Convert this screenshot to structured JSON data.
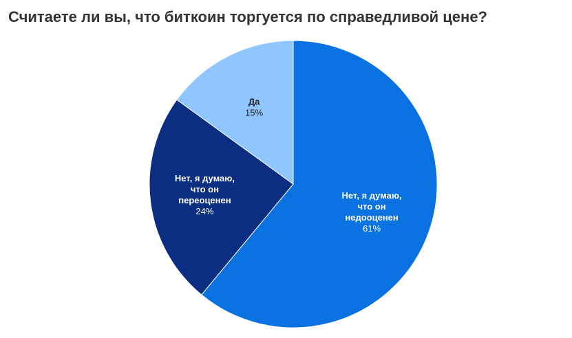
{
  "chart_data": {
    "type": "pie",
    "title": "Считаете ли вы, что биткоин торгуется по справедливой цене?",
    "slices": [
      {
        "label": [
          "Нет, я думаю,",
          "что он",
          "недооценен"
        ],
        "value": 61,
        "value_label": "61%",
        "color": "#0a71e0",
        "text_color": "#ffffff"
      },
      {
        "label": [
          "Нет, я думаю,",
          "что он",
          "переоценен"
        ],
        "value": 24,
        "value_label": "24%",
        "color": "#0b2e82",
        "text_color": "#ffffff"
      },
      {
        "label": [
          "Да"
        ],
        "value": 15,
        "value_label": "15%",
        "color": "#90c6ff",
        "text_color": "#1a1a1a"
      }
    ]
  }
}
